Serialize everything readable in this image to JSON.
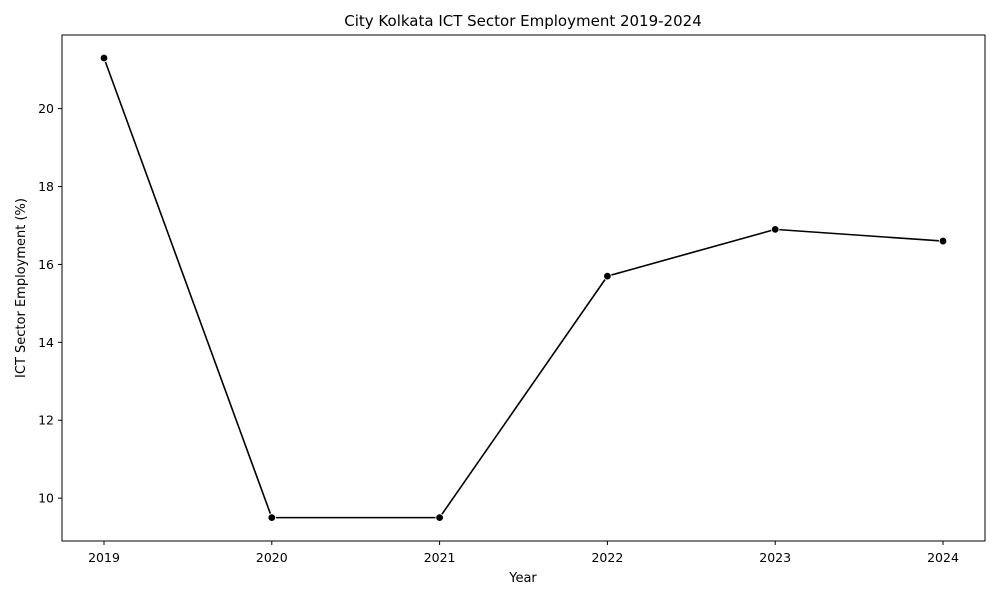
{
  "chart_data": {
    "type": "line",
    "title": "City Kolkata ICT Sector Employment 2019-2024",
    "xlabel": "Year",
    "ylabel": "ICT Sector Employment (%)",
    "x": [
      "2019",
      "2020",
      "2021",
      "2022",
      "2023",
      "2024"
    ],
    "series": [
      {
        "values": [
          21.3,
          9.5,
          9.5,
          15.7,
          16.9,
          16.6
        ]
      }
    ],
    "yticks": [
      10,
      12,
      14,
      16,
      18,
      20
    ],
    "ylim": [
      8.9,
      21.89
    ],
    "grid": false,
    "line_color": "#000000",
    "marker": "circle"
  }
}
